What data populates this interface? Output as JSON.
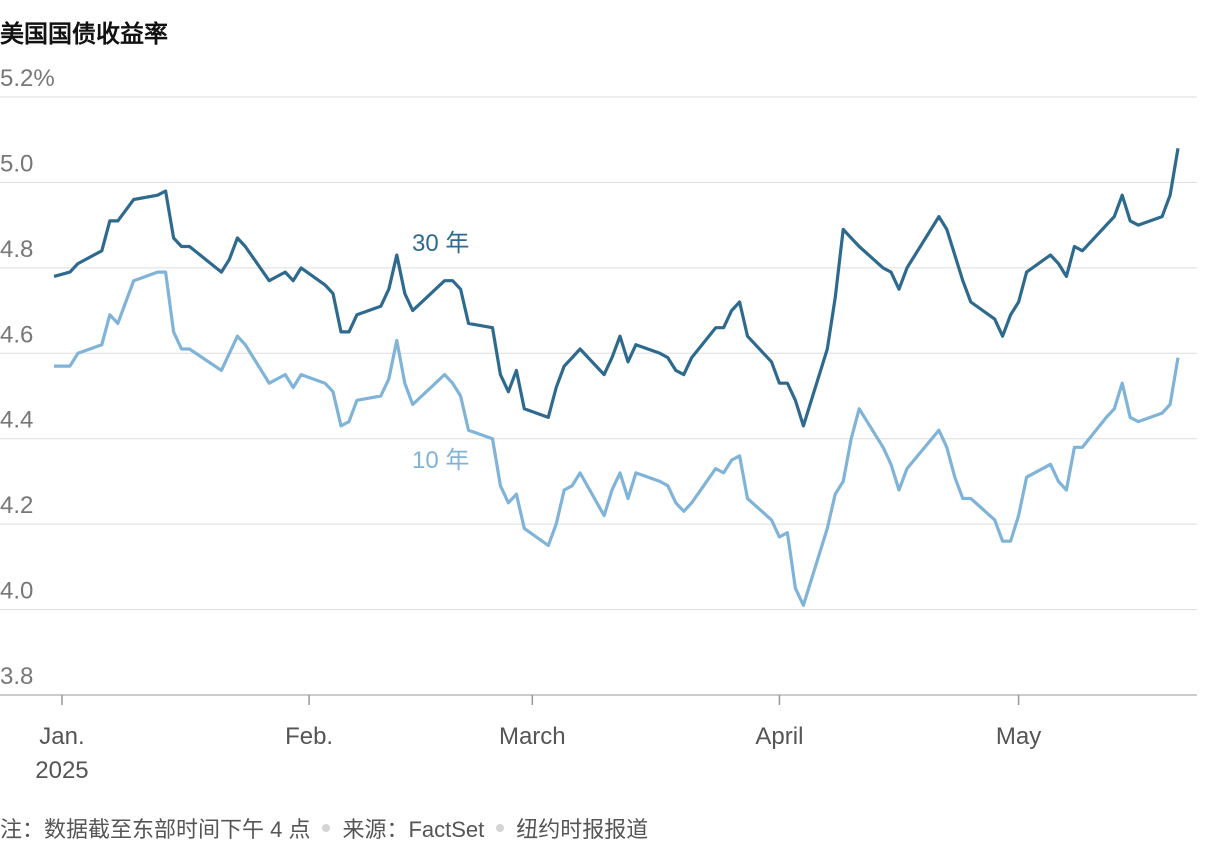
{
  "chart_data": {
    "type": "line",
    "title": "美国国债收益率",
    "x": [
      0,
      2,
      3,
      6,
      7,
      8,
      10,
      13,
      14,
      15,
      16,
      17,
      21,
      22,
      23,
      24,
      27,
      28,
      29,
      30,
      31,
      34,
      35,
      36,
      37,
      38,
      41,
      42,
      43,
      44,
      45,
      49,
      50,
      51,
      52,
      55,
      56,
      57,
      58,
      59,
      62,
      63,
      64,
      65,
      66,
      69,
      70,
      71,
      72,
      73,
      76,
      77,
      78,
      79,
      80,
      83,
      84,
      85,
      86,
      87,
      90,
      91,
      92,
      93,
      94,
      97,
      98,
      99,
      100,
      101,
      104,
      105,
      106,
      107,
      111,
      112,
      113,
      114,
      115,
      118,
      119,
      120,
      121,
      122,
      125,
      126,
      127,
      128,
      129,
      132,
      133,
      134,
      135,
      136,
      139,
      140,
      141
    ],
    "series": [
      {
        "name": "30 年",
        "color": "#2e6a8e",
        "values": [
          4.78,
          4.79,
          4.81,
          4.84,
          4.91,
          4.91,
          4.96,
          4.97,
          4.98,
          4.87,
          4.85,
          4.85,
          4.79,
          4.82,
          4.87,
          4.85,
          4.77,
          4.78,
          4.79,
          4.77,
          4.8,
          4.76,
          4.74,
          4.65,
          4.65,
          4.69,
          4.71,
          4.75,
          4.83,
          4.74,
          4.7,
          4.77,
          4.77,
          4.75,
          4.67,
          4.66,
          4.55,
          4.51,
          4.56,
          4.47,
          4.45,
          4.52,
          4.57,
          4.59,
          4.61,
          4.55,
          4.59,
          4.64,
          4.58,
          4.62,
          4.6,
          4.59,
          4.56,
          4.55,
          4.59,
          4.66,
          4.66,
          4.7,
          4.72,
          4.64,
          4.58,
          4.53,
          4.53,
          4.49,
          4.43,
          4.61,
          4.73,
          4.89,
          4.87,
          4.85,
          4.8,
          4.79,
          4.75,
          4.8,
          4.92,
          4.89,
          4.83,
          4.77,
          4.72,
          4.68,
          4.64,
          4.69,
          4.72,
          4.79,
          4.83,
          4.81,
          4.78,
          4.85,
          4.84,
          4.9,
          4.92,
          4.97,
          4.91,
          4.9,
          4.92,
          4.97,
          5.08
        ]
      },
      {
        "name": "10 年",
        "color": "#7fb3d8",
        "values": [
          4.57,
          4.57,
          4.6,
          4.62,
          4.69,
          4.67,
          4.77,
          4.79,
          4.79,
          4.65,
          4.61,
          4.61,
          4.56,
          4.6,
          4.64,
          4.62,
          4.53,
          4.54,
          4.55,
          4.52,
          4.55,
          4.53,
          4.51,
          4.43,
          4.44,
          4.49,
          4.5,
          4.54,
          4.63,
          4.53,
          4.48,
          4.55,
          4.53,
          4.5,
          4.42,
          4.4,
          4.29,
          4.25,
          4.27,
          4.19,
          4.15,
          4.2,
          4.28,
          4.29,
          4.32,
          4.22,
          4.28,
          4.32,
          4.26,
          4.32,
          4.3,
          4.29,
          4.25,
          4.23,
          4.25,
          4.33,
          4.32,
          4.35,
          4.36,
          4.26,
          4.21,
          4.17,
          4.18,
          4.05,
          4.01,
          4.19,
          4.27,
          4.3,
          4.4,
          4.47,
          4.38,
          4.34,
          4.28,
          4.33,
          4.42,
          4.38,
          4.31,
          4.26,
          4.26,
          4.21,
          4.16,
          4.16,
          4.22,
          4.31,
          4.34,
          4.3,
          4.28,
          4.38,
          4.38,
          4.45,
          4.47,
          4.53,
          4.45,
          4.44,
          4.46,
          4.48,
          4.59
        ]
      }
    ],
    "xlim": [
      0,
      142
    ],
    "xticks": [
      {
        "value": 1,
        "label": "Jan."
      },
      {
        "value": 32,
        "label": "Feb."
      },
      {
        "value": 60,
        "label": "March"
      },
      {
        "value": 91,
        "label": "April"
      },
      {
        "value": 121,
        "label": "May"
      }
    ],
    "year_label": "2025",
    "ylim": [
      3.8,
      5.2
    ],
    "yticks": [
      3.8,
      {
        "value": 4,
        "label": "4.0"
      },
      4.2,
      4.4,
      4.6,
      4.8,
      {
        "value": 5,
        "label": "5.0"
      },
      {
        "value": 5.2,
        "label": "5.2%"
      }
    ],
    "grid": true,
    "notes": [
      "注：数据截至东部时间下午 4 点",
      "来源：FactSet",
      "纽约时报报道"
    ]
  }
}
